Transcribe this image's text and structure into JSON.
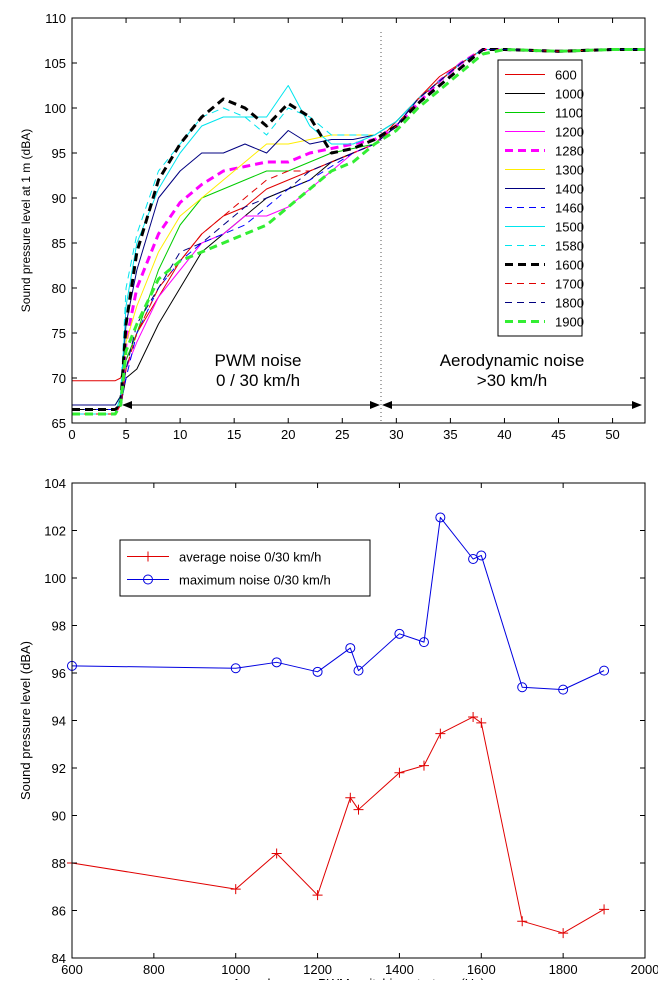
{
  "chart_data": [
    {
      "type": "line",
      "ylabel": "Sound pressure level at 1 m (dBA)",
      "xlim": [
        0,
        53
      ],
      "ylim": [
        65,
        110
      ],
      "xticks": [
        0,
        5,
        10,
        15,
        20,
        25,
        30,
        35,
        40,
        45,
        50
      ],
      "yticks": [
        65,
        70,
        75,
        80,
        85,
        90,
        95,
        100,
        105,
        110
      ],
      "grid": false,
      "legend": "upper right",
      "annotations": [
        "PWM noise",
        "0 / 30 km/h",
        "Aerodynamic noise",
        ">30 km/h"
      ],
      "x": [
        0,
        4,
        4.5,
        5,
        6,
        8,
        10,
        12,
        14,
        16,
        18,
        20,
        22,
        24,
        26,
        28,
        30,
        32,
        34,
        36,
        38,
        40,
        45,
        50,
        53
      ],
      "series": [
        {
          "name": "600",
          "color": "#e00000",
          "style": "solid",
          "width": 1,
          "values": [
            69.7,
            69.7,
            70,
            72,
            75,
            79,
            83,
            86,
            88,
            89,
            91,
            92,
            93,
            94,
            95,
            96,
            98.5,
            101,
            103.5,
            105,
            106.5,
            106.5,
            106.3,
            106.5,
            106.5
          ]
        },
        {
          "name": "1000",
          "color": "#000000",
          "style": "solid",
          "width": 1,
          "values": [
            66.5,
            66.5,
            67,
            70,
            71,
            76,
            80,
            84,
            86,
            88,
            90,
            91,
            92,
            94,
            95,
            96,
            98,
            101,
            103,
            105,
            106.5,
            106.5,
            106.3,
            106.5,
            106.5
          ]
        },
        {
          "name": "1100",
          "color": "#00cc00",
          "style": "solid",
          "width": 1,
          "values": [
            67,
            67,
            68,
            72,
            75,
            82,
            87,
            90,
            91,
            92,
            93,
            93,
            94,
            95,
            95.5,
            96,
            98,
            101,
            103,
            105,
            106.5,
            106.5,
            106.3,
            106.5,
            106.5
          ]
        },
        {
          "name": "1200",
          "color": "#ff00ff",
          "style": "solid",
          "width": 1,
          "values": [
            66,
            66,
            67,
            71,
            74,
            79,
            82,
            85,
            86,
            88,
            88,
            89,
            91,
            93,
            95,
            96,
            98,
            101,
            103,
            105,
            106.5,
            106.5,
            106.3,
            106.5,
            106.5
          ]
        },
        {
          "name": "1280",
          "color": "#ff00ff",
          "style": "dashed",
          "width": 3,
          "values": [
            66.5,
            66.5,
            67,
            74,
            80,
            86,
            89.5,
            91.5,
            93,
            93.5,
            94,
            94,
            95,
            95.5,
            96,
            96.5,
            98,
            100.5,
            103,
            105,
            106.5,
            106.5,
            106.3,
            106.5,
            106.5
          ]
        },
        {
          "name": "1300",
          "color": "#ffee00",
          "style": "solid",
          "width": 1,
          "values": [
            66,
            66,
            68,
            74,
            78,
            84,
            88,
            90,
            92,
            94,
            96,
            96,
            96.5,
            97,
            97,
            97,
            98.5,
            101,
            103,
            105,
            106.5,
            106.5,
            106.3,
            106.5,
            106.5
          ]
        },
        {
          "name": "1400",
          "color": "#000080",
          "style": "solid",
          "width": 1,
          "values": [
            67,
            67,
            68,
            76,
            82,
            90,
            93,
            95,
            95,
            96,
            95,
            97.5,
            96,
            96.5,
            96.5,
            97,
            98.5,
            101,
            103,
            105,
            106.5,
            106.5,
            106.3,
            106.5,
            106.5
          ]
        },
        {
          "name": "1460",
          "color": "#0000ff",
          "style": "dashed",
          "width": 1,
          "values": [
            66.5,
            66.5,
            67,
            70,
            75,
            80,
            83,
            85,
            86,
            87,
            89,
            91,
            92,
            93.5,
            95,
            96,
            98,
            101,
            103,
            105,
            106.5,
            106.5,
            106.3,
            106.5,
            106.5
          ]
        },
        {
          "name": "1500",
          "color": "#00e5ee",
          "style": "solid",
          "width": 1,
          "values": [
            66,
            66,
            68,
            78,
            85,
            91,
            95,
            98,
            99,
            99,
            99,
            102.5,
            98,
            96,
            96,
            97,
            98.5,
            101,
            103,
            105,
            106.5,
            106.5,
            106.3,
            106.5,
            106.5
          ]
        },
        {
          "name": "1580",
          "color": "#00e5ee",
          "style": "dashed",
          "width": 1,
          "values": [
            66,
            66,
            68,
            80,
            86,
            93,
            96,
            99,
            100,
            99,
            97,
            100,
            99,
            97,
            97,
            97,
            98.5,
            101,
            103,
            105,
            106.5,
            106.5,
            106.3,
            106.5,
            106.5
          ]
        },
        {
          "name": "1600",
          "color": "#000000",
          "style": "dashed",
          "width": 3,
          "values": [
            66.5,
            66.5,
            67,
            76,
            84,
            92,
            96,
            99,
            101,
            100,
            98,
            100.5,
            99,
            95,
            95.5,
            96.5,
            98,
            100.5,
            102.5,
            104.5,
            106.5,
            106.5,
            106.3,
            106.5,
            106.5
          ]
        },
        {
          "name": "1700",
          "color": "#e00000",
          "style": "dashed",
          "width": 1,
          "values": [
            66,
            66,
            67,
            71,
            75,
            80,
            83,
            86,
            88,
            90,
            92,
            93,
            93,
            94,
            95,
            96,
            98,
            101,
            103,
            105,
            106.5,
            106.5,
            106.3,
            106.5,
            106.5
          ]
        },
        {
          "name": "1800",
          "color": "#000080",
          "style": "dashed",
          "width": 1,
          "values": [
            67,
            67,
            67.5,
            71,
            76,
            80,
            84,
            85,
            87,
            89,
            90,
            91,
            93,
            94,
            95,
            96,
            98,
            101,
            103,
            105,
            106.5,
            106.5,
            106.3,
            106.5,
            106.5
          ]
        },
        {
          "name": "1900",
          "color": "#33ee33",
          "style": "dashed",
          "width": 3,
          "values": [
            66,
            66,
            67,
            73,
            76,
            81,
            83,
            84,
            85,
            86,
            87,
            89,
            91,
            93,
            94,
            96,
            97.5,
            100,
            102,
            104,
            106,
            106.5,
            106.3,
            106.5,
            106.5
          ]
        }
      ]
    },
    {
      "type": "line",
      "xlabel": "Asynchronous PWM switching strategy (Hz)",
      "ylabel": "Sound pressure level (dBA)",
      "xlim": [
        600,
        2000
      ],
      "ylim": [
        84,
        104
      ],
      "xticks": [
        600,
        800,
        1000,
        1200,
        1400,
        1600,
        1800,
        2000
      ],
      "yticks": [
        84,
        86,
        88,
        90,
        92,
        94,
        96,
        98,
        100,
        102,
        104
      ],
      "grid": false,
      "legend": "upper left",
      "x": [
        600,
        1000,
        1100,
        1200,
        1280,
        1300,
        1400,
        1460,
        1500,
        1580,
        1600,
        1700,
        1800,
        1900
      ],
      "series": [
        {
          "name": "average noise 0/30 km/h",
          "color": "#e00000",
          "marker": "plus",
          "style": "solid",
          "width": 1,
          "values": [
            88.0,
            86.9,
            88.4,
            86.65,
            90.75,
            90.25,
            91.8,
            92.1,
            93.45,
            94.15,
            93.9,
            85.55,
            85.05,
            86.05
          ]
        },
        {
          "name": "maximum noise 0/30 km/h",
          "color": "#0000e0",
          "marker": "circle",
          "style": "solid",
          "width": 1,
          "values": [
            96.3,
            96.2,
            96.45,
            96.05,
            97.05,
            96.1,
            97.65,
            97.3,
            102.55,
            100.8,
            100.95,
            95.4,
            95.3,
            96.1
          ]
        }
      ]
    }
  ]
}
